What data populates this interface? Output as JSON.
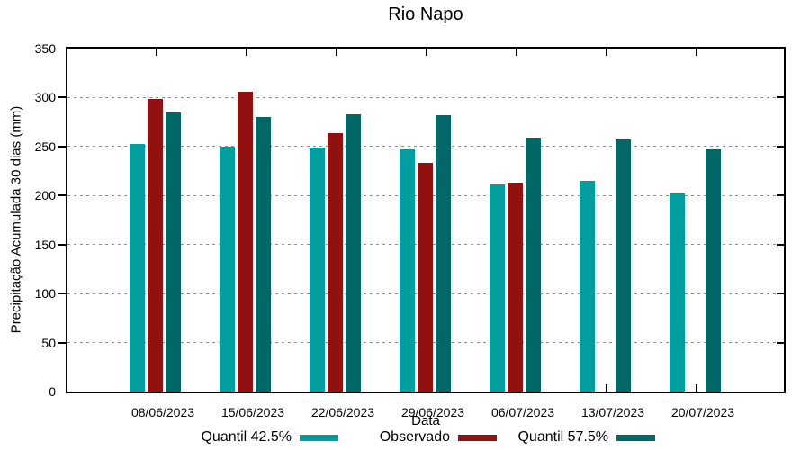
{
  "chart_data": {
    "type": "bar",
    "title": "Rio Napo",
    "xlabel": "Data",
    "ylabel": "Precipitação Acumulada 30 dias (mm)",
    "ylim": [
      0,
      350
    ],
    "yticks": [
      0,
      50,
      100,
      150,
      200,
      250,
      300,
      350
    ],
    "grid": true,
    "grid_style": "dashed",
    "legend_position": "bottom",
    "frame_color": "#000000",
    "categories": [
      "08/06/2023",
      "15/06/2023",
      "22/06/2023",
      "29/06/2023",
      "06/07/2023",
      "13/07/2023",
      "20/07/2023"
    ],
    "series": [
      {
        "name": "Quantil 42.5%",
        "color": "#009E9E",
        "values": [
          253,
          250,
          249,
          247,
          211,
          215,
          202
        ]
      },
      {
        "name": "Observado",
        "color": "#911010",
        "values": [
          299,
          306,
          264,
          233,
          213,
          null,
          null
        ]
      },
      {
        "name": "Quantil 57.5%",
        "color": "#016767",
        "values": [
          285,
          280,
          283,
          282,
          259,
          257,
          247
        ]
      }
    ]
  }
}
